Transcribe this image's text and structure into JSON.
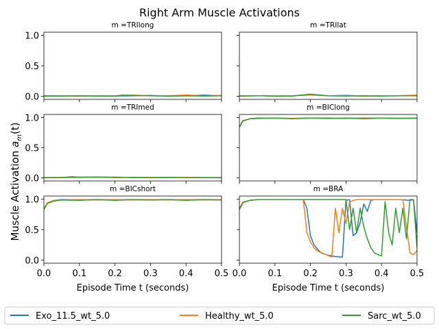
{
  "chart_data": {
    "type": "line",
    "title": "Right Arm Muscle Activations",
    "ylabel": "Muscle Activation $a_m(t)$",
    "ylabel_main": "Muscle Activation ",
    "ylabel_var": "a",
    "ylabel_sub": "m",
    "ylabel_arg": "(t)",
    "xlabel": "Episode Time t (seconds)",
    "xlim": [
      0,
      0.5
    ],
    "ylim": [
      -0.05,
      1.05
    ],
    "x_ticks": [
      "0.0",
      "0.1",
      "0.2",
      "0.3",
      "0.4",
      "0.5"
    ],
    "y_ticks": [
      "0.0",
      "0.5",
      "1.0"
    ],
    "legend": {
      "placement": "bottom",
      "entries": [
        "Exo_11.5_wt_5.0",
        "Healthy_wt_5.0",
        "Sarc_wt_5.0"
      ]
    },
    "colors": [
      "#1f77b4",
      "#ff7f0e",
      "#2ca02c"
    ],
    "subplots": [
      {
        "title": "m =TRIlong",
        "series": [
          {
            "name": "Exo_11.5_wt_5.0",
            "x": [
              0,
              0.05,
              0.1,
              0.15,
              0.2,
              0.25,
              0.3,
              0.35,
              0.4,
              0.45,
              0.5
            ],
            "y": [
              0.01,
              0.01,
              0.005,
              0.01,
              0.005,
              0.01,
              0.015,
              0.005,
              0.01,
              0.02,
              0.01
            ]
          },
          {
            "name": "Healthy_wt_5.0",
            "x": [
              0,
              0.05,
              0.1,
              0.15,
              0.2,
              0.25,
              0.3,
              0.35,
              0.4,
              0.45,
              0.5
            ],
            "y": [
              0.005,
              0.01,
              0.005,
              0.01,
              0.01,
              0.02,
              0.01,
              0.01,
              0.02,
              0.01,
              0.015
            ]
          },
          {
            "name": "Sarc_wt_5.0",
            "x": [
              0,
              0.05,
              0.1,
              0.15,
              0.2,
              0.22,
              0.25,
              0.3,
              0.35,
              0.4,
              0.45,
              0.5
            ],
            "y": [
              0.005,
              0.005,
              0.01,
              0.005,
              0.005,
              0.02,
              0.015,
              0.01,
              0.005,
              0.01,
              0.005,
              0.01
            ]
          }
        ]
      },
      {
        "title": "m =TRIlat",
        "series": [
          {
            "name": "Exo_11.5_wt_5.0",
            "x": [
              0,
              0.05,
              0.1,
              0.15,
              0.2,
              0.25,
              0.3,
              0.35,
              0.4,
              0.45,
              0.5
            ],
            "y": [
              0.01,
              0.01,
              0.005,
              0.01,
              0.03,
              0.01,
              0.015,
              0.005,
              0.01,
              0.01,
              0.015
            ]
          },
          {
            "name": "Healthy_wt_5.0",
            "x": [
              0,
              0.05,
              0.1,
              0.15,
              0.2,
              0.25,
              0.3,
              0.35,
              0.4,
              0.45,
              0.5
            ],
            "y": [
              0.005,
              0.01,
              0.005,
              0.01,
              0.02,
              0.01,
              0.01,
              0.005,
              0.01,
              0.01,
              0.02
            ]
          },
          {
            "name": "Sarc_wt_5.0",
            "x": [
              0,
              0.05,
              0.1,
              0.15,
              0.2,
              0.25,
              0.3,
              0.35,
              0.4,
              0.45,
              0.5
            ],
            "y": [
              0.005,
              0.01,
              0.005,
              0.005,
              0.035,
              0.01,
              0.005,
              0.01,
              0.005,
              0.01,
              0.01
            ]
          }
        ]
      },
      {
        "title": "m =TRImed",
        "series": [
          {
            "name": "Exo_11.5_wt_5.0",
            "x": [
              0,
              0.05,
              0.1,
              0.15,
              0.2,
              0.25,
              0.3,
              0.35,
              0.4,
              0.45,
              0.5
            ],
            "y": [
              0.005,
              0.005,
              0.01,
              0.015,
              0.01,
              0.01,
              0.005,
              0.01,
              0.01,
              0.005,
              0.005
            ]
          },
          {
            "name": "Healthy_wt_5.0",
            "x": [
              0,
              0.05,
              0.1,
              0.15,
              0.2,
              0.25,
              0.3,
              0.35,
              0.4,
              0.45,
              0.5
            ],
            "y": [
              0.005,
              0.01,
              0.015,
              0.01,
              0.015,
              0.005,
              0.01,
              0.005,
              0.01,
              0.005,
              0.005
            ]
          },
          {
            "name": "Sarc_wt_5.0",
            "x": [
              0,
              0.05,
              0.08,
              0.1,
              0.15,
              0.2,
              0.25,
              0.3,
              0.35,
              0.4,
              0.45,
              0.5
            ],
            "y": [
              0.005,
              0.005,
              0.02,
              0.01,
              0.015,
              0.005,
              0.01,
              0.005,
              0.01,
              0.005,
              0.005,
              0.005
            ]
          }
        ]
      },
      {
        "title": "m =BIClong",
        "series": [
          {
            "name": "Exo_11.5_wt_5.0",
            "x": [
              0,
              0.01,
              0.03,
              0.05,
              0.1,
              0.15,
              0.2,
              0.25,
              0.3,
              0.35,
              0.4,
              0.45,
              0.5
            ],
            "y": [
              0.85,
              0.95,
              0.98,
              0.99,
              0.99,
              0.985,
              0.99,
              0.99,
              0.985,
              0.99,
              0.99,
              0.985,
              0.99
            ]
          },
          {
            "name": "Healthy_wt_5.0",
            "x": [
              0,
              0.01,
              0.03,
              0.05,
              0.1,
              0.15,
              0.2,
              0.25,
              0.3,
              0.35,
              0.4,
              0.45,
              0.5
            ],
            "y": [
              0.85,
              0.95,
              0.98,
              0.985,
              0.99,
              0.985,
              0.99,
              0.985,
              0.99,
              0.985,
              0.99,
              0.99,
              0.985
            ]
          },
          {
            "name": "Sarc_wt_5.0",
            "x": [
              0,
              0.01,
              0.03,
              0.05,
              0.1,
              0.15,
              0.2,
              0.25,
              0.3,
              0.35,
              0.4,
              0.45,
              0.5
            ],
            "y": [
              0.84,
              0.94,
              0.98,
              0.985,
              0.99,
              0.98,
              0.99,
              0.985,
              0.99,
              0.98,
              0.99,
              0.985,
              0.99
            ]
          }
        ]
      },
      {
        "title": "m =BICshort",
        "series": [
          {
            "name": "Exo_11.5_wt_5.0",
            "x": [
              0,
              0.01,
              0.03,
              0.05,
              0.1,
              0.15,
              0.2,
              0.25,
              0.3,
              0.35,
              0.4,
              0.45,
              0.5
            ],
            "y": [
              0.84,
              0.94,
              0.98,
              0.99,
              0.985,
              0.99,
              0.985,
              0.99,
              0.985,
              0.99,
              0.985,
              0.99,
              0.985
            ]
          },
          {
            "name": "Healthy_wt_5.0",
            "x": [
              0,
              0.01,
              0.03,
              0.05,
              0.1,
              0.15,
              0.2,
              0.25,
              0.3,
              0.35,
              0.4,
              0.45,
              0.5
            ],
            "y": [
              0.84,
              0.94,
              0.98,
              0.985,
              0.99,
              0.985,
              0.99,
              0.985,
              0.99,
              0.985,
              0.99,
              0.985,
              0.99
            ]
          },
          {
            "name": "Sarc_wt_5.0",
            "x": [
              0,
              0.01,
              0.03,
              0.05,
              0.1,
              0.15,
              0.2,
              0.25,
              0.3,
              0.35,
              0.4,
              0.45,
              0.5
            ],
            "y": [
              0.83,
              0.93,
              0.97,
              0.985,
              0.98,
              0.99,
              0.98,
              0.99,
              0.985,
              0.99,
              0.98,
              0.99,
              0.985
            ]
          }
        ]
      },
      {
        "title": "m =BRA",
        "series": [
          {
            "name": "Exo_11.5_wt_5.0",
            "x": [
              0,
              0.01,
              0.03,
              0.05,
              0.1,
              0.15,
              0.18,
              0.19,
              0.2,
              0.21,
              0.22,
              0.23,
              0.25,
              0.27,
              0.29,
              0.3,
              0.31,
              0.32,
              0.33,
              0.34,
              0.35,
              0.36,
              0.37,
              0.38,
              0.4,
              0.45,
              0.48,
              0.49,
              0.5
            ],
            "y": [
              0.85,
              0.95,
              0.98,
              0.99,
              0.99,
              0.99,
              0.99,
              0.85,
              0.4,
              0.25,
              0.18,
              0.12,
              0.08,
              0.06,
              0.05,
              0.98,
              0.99,
              0.4,
              0.45,
              0.62,
              0.92,
              0.8,
              0.98,
              0.99,
              0.99,
              0.99,
              0.98,
              0.99,
              0.45
            ]
          },
          {
            "name": "Healthy_wt_5.0",
            "x": [
              0,
              0.01,
              0.03,
              0.05,
              0.1,
              0.15,
              0.17,
              0.18,
              0.19,
              0.2,
              0.21,
              0.22,
              0.24,
              0.26,
              0.27,
              0.28,
              0.29,
              0.3,
              0.31,
              0.32,
              0.33,
              0.35,
              0.38,
              0.4,
              0.42,
              0.44,
              0.46,
              0.48,
              0.49,
              0.5
            ],
            "y": [
              0.85,
              0.95,
              0.98,
              0.99,
              0.99,
              0.99,
              0.99,
              0.99,
              0.45,
              0.3,
              0.2,
              0.15,
              0.1,
              0.05,
              0.85,
              0.45,
              0.85,
              0.6,
              0.95,
              0.98,
              0.99,
              0.99,
              0.99,
              0.99,
              0.99,
              0.99,
              0.99,
              0.12,
              0.09,
              0.16
            ]
          },
          {
            "name": "Sarc_wt_5.0",
            "x": [
              0,
              0.01,
              0.03,
              0.05,
              0.1,
              0.15,
              0.2,
              0.25,
              0.29,
              0.3,
              0.31,
              0.32,
              0.33,
              0.34,
              0.35,
              0.36,
              0.37,
              0.38,
              0.39,
              0.4,
              0.41,
              0.42,
              0.43,
              0.44,
              0.45,
              0.46,
              0.47,
              0.48,
              0.49,
              0.5
            ],
            "y": [
              0.83,
              0.94,
              0.98,
              0.99,
              0.99,
              0.99,
              0.99,
              0.99,
              0.99,
              0.99,
              0.5,
              0.85,
              0.45,
              0.85,
              0.55,
              0.35,
              0.2,
              0.12,
              0.09,
              0.07,
              0.96,
              0.45,
              0.25,
              0.85,
              0.45,
              0.85,
              0.35,
              0.99,
              0.99,
              0.2
            ]
          }
        ]
      }
    ]
  }
}
